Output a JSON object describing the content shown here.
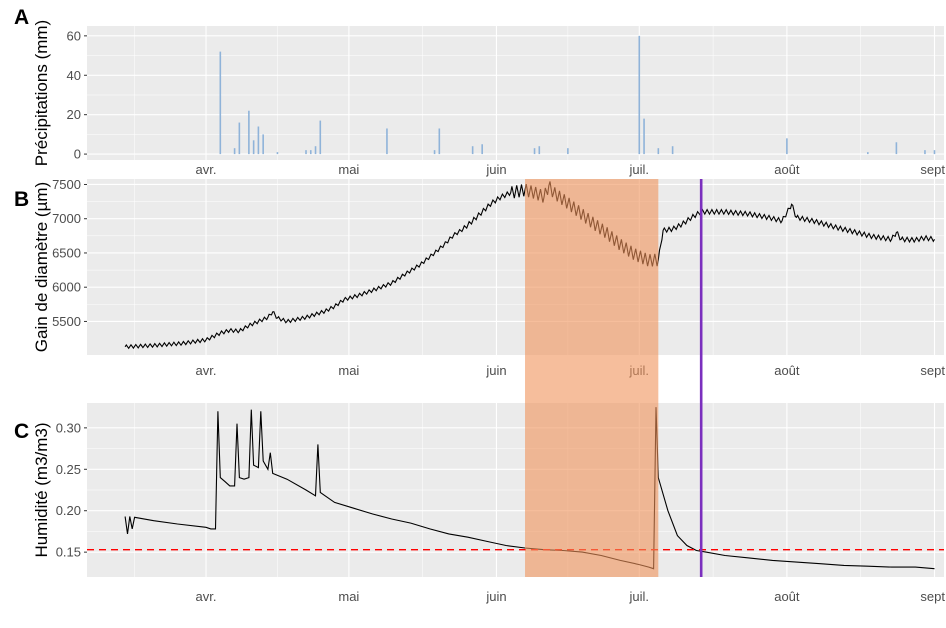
{
  "colors": {
    "panel_bg": "#ebebeb",
    "grid_major": "#ffffff",
    "precip_bar": "#8fb3d9",
    "line": "#000000",
    "shade": "#f0935a",
    "vline": "#7b2fbe",
    "threshold": "#ff0000"
  },
  "chart_data": [
    {
      "panel": "A",
      "type": "bar",
      "ylabel": "Précipitations (mm)",
      "xlim_doy": [
        66,
        246
      ],
      "ylim": [
        -3,
        65
      ],
      "yticks": [
        0,
        20,
        40,
        60
      ],
      "xtick_doy": [
        91,
        121,
        152,
        182,
        213,
        244
      ],
      "xtick_labels": [
        "avr.",
        "mai",
        "juin",
        "juil.",
        "août",
        "sept."
      ],
      "bars": [
        {
          "doy": 94,
          "mm": 52
        },
        {
          "doy": 97,
          "mm": 3
        },
        {
          "doy": 98,
          "mm": 16
        },
        {
          "doy": 100,
          "mm": 22
        },
        {
          "doy": 101,
          "mm": 7
        },
        {
          "doy": 102,
          "mm": 14
        },
        {
          "doy": 103,
          "mm": 10
        },
        {
          "doy": 106,
          "mm": 1
        },
        {
          "doy": 112,
          "mm": 2
        },
        {
          "doy": 113,
          "mm": 2
        },
        {
          "doy": 114,
          "mm": 4
        },
        {
          "doy": 115,
          "mm": 17
        },
        {
          "doy": 129,
          "mm": 13
        },
        {
          "doy": 139,
          "mm": 2
        },
        {
          "doy": 140,
          "mm": 13
        },
        {
          "doy": 147,
          "mm": 4
        },
        {
          "doy": 149,
          "mm": 5
        },
        {
          "doy": 160,
          "mm": 3
        },
        {
          "doy": 161,
          "mm": 4
        },
        {
          "doy": 167,
          "mm": 3
        },
        {
          "doy": 182,
          "mm": 60
        },
        {
          "doy": 183,
          "mm": 18
        },
        {
          "doy": 186,
          "mm": 3
        },
        {
          "doy": 189,
          "mm": 4
        },
        {
          "doy": 213,
          "mm": 8
        },
        {
          "doy": 230,
          "mm": 1
        },
        {
          "doy": 236,
          "mm": 6
        },
        {
          "doy": 242,
          "mm": 2
        },
        {
          "doy": 244,
          "mm": 2
        }
      ]
    },
    {
      "panel": "B",
      "type": "line",
      "ylabel": "Gain de diamètre (µm)",
      "xlim_doy": [
        66,
        246
      ],
      "ylim": [
        5010,
        7580
      ],
      "yticks": [
        5500,
        6000,
        6500,
        7000,
        7500
      ],
      "xtick_doy": [
        91,
        121,
        152,
        182,
        213,
        244
      ],
      "xtick_labels": [
        "avr.",
        "mai",
        "juin",
        "juil.",
        "août",
        "sept."
      ],
      "shaded_doy": [
        158,
        186
      ],
      "vline_doy": 195,
      "diurnal_amplitude": 25,
      "drought_amplitude": 90,
      "points": [
        [
          74,
          5130
        ],
        [
          80,
          5150
        ],
        [
          86,
          5180
        ],
        [
          91,
          5230
        ],
        [
          94,
          5330
        ],
        [
          96,
          5370
        ],
        [
          98,
          5360
        ],
        [
          100,
          5440
        ],
        [
          102,
          5500
        ],
        [
          104,
          5560
        ],
        [
          105,
          5640
        ],
        [
          106,
          5550
        ],
        [
          108,
          5500
        ],
        [
          112,
          5560
        ],
        [
          116,
          5650
        ],
        [
          118,
          5720
        ],
        [
          120,
          5820
        ],
        [
          123,
          5880
        ],
        [
          127,
          5980
        ],
        [
          130,
          6060
        ],
        [
          133,
          6200
        ],
        [
          136,
          6330
        ],
        [
          139,
          6500
        ],
        [
          141,
          6620
        ],
        [
          143,
          6760
        ],
        [
          145,
          6850
        ],
        [
          147,
          6970
        ],
        [
          149,
          7100
        ],
        [
          151,
          7230
        ],
        [
          153,
          7320
        ],
        [
          155,
          7380
        ],
        [
          158,
          7420
        ],
        [
          160,
          7380
        ],
        [
          162,
          7320
        ],
        [
          163,
          7480
        ],
        [
          164,
          7380
        ],
        [
          166,
          7280
        ],
        [
          169,
          7120
        ],
        [
          172,
          6950
        ],
        [
          175,
          6800
        ],
        [
          178,
          6620
        ],
        [
          181,
          6480
        ],
        [
          184,
          6390
        ],
        [
          186,
          6400
        ],
        [
          187,
          6830
        ],
        [
          189,
          6850
        ],
        [
          191,
          6920
        ],
        [
          193,
          7020
        ],
        [
          195,
          7100
        ],
        [
          200,
          7100
        ],
        [
          205,
          7070
        ],
        [
          209,
          7020
        ],
        [
          212,
          6970
        ],
        [
          214,
          7210
        ],
        [
          215,
          7020
        ],
        [
          219,
          6960
        ],
        [
          223,
          6880
        ],
        [
          227,
          6810
        ],
        [
          231,
          6740
        ],
        [
          235,
          6700
        ],
        [
          236,
          6800
        ],
        [
          237,
          6700
        ],
        [
          240,
          6690
        ],
        [
          242,
          6720
        ],
        [
          244,
          6700
        ]
      ]
    },
    {
      "panel": "C",
      "type": "line",
      "ylabel": "Humidité (m3/m3)",
      "xlim_doy": [
        66,
        246
      ],
      "ylim": [
        0.12,
        0.33
      ],
      "yticks": [
        0.15,
        0.2,
        0.25,
        0.3
      ],
      "xtick_doy": [
        91,
        121,
        152,
        182,
        213,
        244
      ],
      "xtick_labels": [
        "avr.",
        "mai",
        "juin",
        "juil.",
        "août",
        "sept."
      ],
      "threshold": 0.153,
      "shaded_doy": [
        158,
        186
      ],
      "vline_doy": 195,
      "points": [
        [
          74,
          0.193
        ],
        [
          74.5,
          0.172
        ],
        [
          75,
          0.193
        ],
        [
          75.5,
          0.178
        ],
        [
          76,
          0.192
        ],
        [
          80,
          0.188
        ],
        [
          85,
          0.184
        ],
        [
          91,
          0.18
        ],
        [
          92,
          0.178
        ],
        [
          93,
          0.178
        ],
        [
          93.5,
          0.32
        ],
        [
          94,
          0.24
        ],
        [
          95,
          0.235
        ],
        [
          96,
          0.23
        ],
        [
          97,
          0.23
        ],
        [
          97.5,
          0.305
        ],
        [
          98,
          0.24
        ],
        [
          99,
          0.238
        ],
        [
          100,
          0.24
        ],
        [
          100.5,
          0.322
        ],
        [
          101,
          0.255
        ],
        [
          102,
          0.252
        ],
        [
          102.5,
          0.32
        ],
        [
          103,
          0.26
        ],
        [
          104,
          0.25
        ],
        [
          104.5,
          0.27
        ],
        [
          105,
          0.245
        ],
        [
          108,
          0.238
        ],
        [
          112,
          0.225
        ],
        [
          114,
          0.218
        ],
        [
          114.5,
          0.28
        ],
        [
          115,
          0.222
        ],
        [
          118,
          0.21
        ],
        [
          122,
          0.203
        ],
        [
          126,
          0.196
        ],
        [
          130,
          0.19
        ],
        [
          134,
          0.185
        ],
        [
          138,
          0.178
        ],
        [
          142,
          0.172
        ],
        [
          146,
          0.168
        ],
        [
          150,
          0.163
        ],
        [
          154,
          0.158
        ],
        [
          158,
          0.155
        ],
        [
          162,
          0.153
        ],
        [
          166,
          0.152
        ],
        [
          170,
          0.15
        ],
        [
          174,
          0.146
        ],
        [
          178,
          0.14
        ],
        [
          182,
          0.135
        ],
        [
          184,
          0.132
        ],
        [
          185,
          0.13
        ],
        [
          185.5,
          0.325
        ],
        [
          186,
          0.24
        ],
        [
          188,
          0.2
        ],
        [
          190,
          0.17
        ],
        [
          192,
          0.158
        ],
        [
          194,
          0.152
        ],
        [
          196,
          0.15
        ],
        [
          200,
          0.146
        ],
        [
          205,
          0.143
        ],
        [
          210,
          0.14
        ],
        [
          215,
          0.138
        ],
        [
          220,
          0.136
        ],
        [
          225,
          0.134
        ],
        [
          230,
          0.133
        ],
        [
          235,
          0.132
        ],
        [
          240,
          0.132
        ],
        [
          244,
          0.13
        ]
      ]
    }
  ]
}
